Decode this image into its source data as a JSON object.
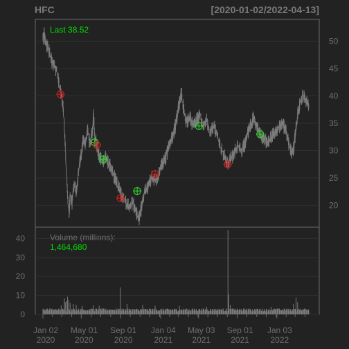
{
  "chart_data": [
    {
      "type": "line",
      "title": "HFC",
      "date_range": "[2020-01-02/2022-04-13]",
      "last_label": "Last 38.52",
      "x_range": [
        "2020-01-02",
        "2022-04-13"
      ],
      "ylim": [
        16,
        54
      ],
      "y_ticks": [
        20,
        25,
        30,
        35,
        40,
        45,
        50
      ],
      "y_tick_labels": [
        "20",
        "25",
        "30",
        "35",
        "40",
        "45",
        "50"
      ],
      "grid": true,
      "series": [
        {
          "name": "",
          "color": "#7a7a7a",
          "points": [
            [
              "2020-01-02",
              50.5
            ],
            [
              "2020-01-06",
              51.6
            ],
            [
              "2020-01-10",
              49.5
            ],
            [
              "2020-01-17",
              49.0
            ],
            [
              "2020-01-24",
              47.5
            ],
            [
              "2020-01-31",
              46.0
            ],
            [
              "2020-02-07",
              45.5
            ],
            [
              "2020-02-14",
              44.5
            ],
            [
              "2020-02-21",
              42.5
            ],
            [
              "2020-02-28",
              40.5
            ],
            [
              "2020-03-06",
              37.5
            ],
            [
              "2020-03-11",
              32.0
            ],
            [
              "2020-03-16",
              26.0
            ],
            [
              "2020-03-20",
              21.0
            ],
            [
              "2020-03-24",
              18.8
            ],
            [
              "2020-03-27",
              22.0
            ],
            [
              "2020-04-02",
              20.5
            ],
            [
              "2020-04-09",
              24.0
            ],
            [
              "2020-04-16",
              22.5
            ],
            [
              "2020-04-23",
              26.5
            ],
            [
              "2020-04-30",
              29.0
            ],
            [
              "2020-05-07",
              32.5
            ],
            [
              "2020-05-14",
              31.0
            ],
            [
              "2020-05-21",
              34.0
            ],
            [
              "2020-05-28",
              31.0
            ],
            [
              "2020-06-04",
              33.5
            ],
            [
              "2020-06-09",
              36.5
            ],
            [
              "2020-06-12",
              32.5
            ],
            [
              "2020-06-19",
              31.0
            ],
            [
              "2020-06-26",
              29.0
            ],
            [
              "2020-07-06",
              28.0
            ],
            [
              "2020-07-16",
              28.8
            ],
            [
              "2020-07-28",
              27.5
            ],
            [
              "2020-08-07",
              26.0
            ],
            [
              "2020-08-17",
              24.5
            ],
            [
              "2020-08-27",
              23.0
            ],
            [
              "2020-09-08",
              21.5
            ],
            [
              "2020-09-18",
              20.5
            ],
            [
              "2020-09-30",
              19.8
            ],
            [
              "2020-10-09",
              20.5
            ],
            [
              "2020-10-19",
              19.0
            ],
            [
              "2020-10-29",
              17.5
            ],
            [
              "2020-11-05",
              19.5
            ],
            [
              "2020-11-10",
              21.5
            ],
            [
              "2020-11-17",
              22.5
            ],
            [
              "2020-11-27",
              23.5
            ],
            [
              "2020-12-07",
              25.0
            ],
            [
              "2020-12-17",
              24.5
            ],
            [
              "2020-12-29",
              25.5
            ],
            [
              "2021-01-08",
              27.5
            ],
            [
              "2021-01-19",
              28.5
            ],
            [
              "2021-01-29",
              30.5
            ],
            [
              "2021-02-10",
              32.5
            ],
            [
              "2021-02-22",
              35.0
            ],
            [
              "2021-03-03",
              38.5
            ],
            [
              "2021-03-10",
              40.5
            ],
            [
              "2021-03-15",
              38.5
            ],
            [
              "2021-03-25",
              35.0
            ],
            [
              "2021-04-06",
              36.0
            ],
            [
              "2021-04-16",
              34.5
            ],
            [
              "2021-04-27",
              35.5
            ],
            [
              "2021-05-07",
              36.5
            ],
            [
              "2021-05-18",
              34.5
            ],
            [
              "2021-05-28",
              35.5
            ],
            [
              "2021-06-09",
              33.5
            ],
            [
              "2021-06-21",
              34.5
            ],
            [
              "2021-07-01",
              32.5
            ],
            [
              "2021-07-12",
              30.5
            ],
            [
              "2021-07-22",
              29.0
            ],
            [
              "2021-08-02",
              27.5
            ],
            [
              "2021-08-12",
              28.5
            ],
            [
              "2021-08-23",
              29.5
            ],
            [
              "2021-09-02",
              31.0
            ],
            [
              "2021-09-15",
              30.0
            ],
            [
              "2021-09-27",
              31.5
            ],
            [
              "2021-10-06",
              33.5
            ],
            [
              "2021-10-15",
              35.0
            ],
            [
              "2021-10-22",
              36.0
            ],
            [
              "2021-11-01",
              34.5
            ],
            [
              "2021-11-12",
              33.0
            ],
            [
              "2021-11-24",
              32.0
            ],
            [
              "2021-12-06",
              31.5
            ],
            [
              "2021-12-17",
              32.5
            ],
            [
              "2021-12-29",
              33.5
            ],
            [
              "2022-01-10",
              34.5
            ],
            [
              "2022-01-20",
              35.0
            ],
            [
              "2022-02-01",
              33.5
            ],
            [
              "2022-02-10",
              31.0
            ],
            [
              "2022-02-17",
              29.5
            ],
            [
              "2022-02-25",
              30.5
            ],
            [
              "2022-03-04",
              34.0
            ],
            [
              "2022-03-10",
              37.0
            ],
            [
              "2022-03-18",
              39.0
            ],
            [
              "2022-03-25",
              40.0
            ],
            [
              "2022-04-01",
              39.5
            ],
            [
              "2022-04-07",
              39.0
            ],
            [
              "2022-04-13",
              38.5
            ]
          ]
        }
      ],
      "markers": [
        {
          "date": "2020-02-26",
          "value": 40.3,
          "color": "#cc1f1f"
        },
        {
          "date": "2020-06-12",
          "value": 31.5,
          "color": "#33cc33"
        },
        {
          "date": "2020-06-19",
          "value": 31.0,
          "color": "#cc1f1f"
        },
        {
          "date": "2020-07-09",
          "value": 28.4,
          "color": "#33cc33"
        },
        {
          "date": "2020-09-01",
          "value": 21.3,
          "color": "#cc1f1f"
        },
        {
          "date": "2020-10-23",
          "value": 22.6,
          "color": "#33cc33"
        },
        {
          "date": "2020-12-18",
          "value": 25.7,
          "color": "#cc1f1f"
        },
        {
          "date": "2021-05-04",
          "value": 34.5,
          "color": "#33cc33"
        },
        {
          "date": "2021-08-02",
          "value": 27.5,
          "color": "#cc1f1f"
        },
        {
          "date": "2021-11-12",
          "value": 33.0,
          "color": "#33cc33"
        }
      ]
    },
    {
      "type": "bar",
      "title": "",
      "volume_label": "Volume (millions):",
      "volume_value": "1,464,680",
      "x_range": [
        "2020-01-02",
        "2022-04-13"
      ],
      "ylim": [
        0,
        46
      ],
      "y_ticks": [
        0,
        10,
        20,
        30,
        40
      ],
      "y_tick_labels": [
        "0",
        "10",
        "20",
        "30",
        "40"
      ],
      "grid": true,
      "baseline": 2.2,
      "spikes": [
        {
          "date": "2020-01-03",
          "value": 3.0
        },
        {
          "date": "2020-01-24",
          "value": 3.2
        },
        {
          "date": "2020-02-28",
          "value": 4.8
        },
        {
          "date": "2020-03-09",
          "value": 8.5
        },
        {
          "date": "2020-03-12",
          "value": 6.5
        },
        {
          "date": "2020-03-16",
          "value": 7.0
        },
        {
          "date": "2020-03-19",
          "value": 9.3
        },
        {
          "date": "2020-03-23",
          "value": 7.5
        },
        {
          "date": "2020-03-27",
          "value": 6.0
        },
        {
          "date": "2020-04-06",
          "value": 5.5
        },
        {
          "date": "2020-04-15",
          "value": 5.0
        },
        {
          "date": "2020-05-04",
          "value": 4.5
        },
        {
          "date": "2020-06-08",
          "value": 4.8
        },
        {
          "date": "2020-06-26",
          "value": 4.5
        },
        {
          "date": "2020-08-31",
          "value": 14.2
        },
        {
          "date": "2020-09-21",
          "value": 5.5
        },
        {
          "date": "2020-11-09",
          "value": 5.0
        },
        {
          "date": "2020-12-18",
          "value": 4.5
        },
        {
          "date": "2021-03-04",
          "value": 4.5
        },
        {
          "date": "2021-05-28",
          "value": 4.0
        },
        {
          "date": "2021-08-03",
          "value": 44.5
        },
        {
          "date": "2021-08-05",
          "value": 10.5
        },
        {
          "date": "2021-08-10",
          "value": 5.0
        },
        {
          "date": "2021-12-17",
          "value": 4.0
        },
        {
          "date": "2022-02-24",
          "value": 5.5
        },
        {
          "date": "2022-03-04",
          "value": 8.8
        },
        {
          "date": "2022-03-09",
          "value": 6.5
        }
      ],
      "x_ticks": [
        {
          "date": "2020-01-02",
          "line1": "Jan 02",
          "line2": "2020"
        },
        {
          "date": "2020-05-01",
          "line1": "May 01",
          "line2": "2020"
        },
        {
          "date": "2020-09-01",
          "line1": "Sep 01",
          "line2": "2020"
        },
        {
          "date": "2021-01-04",
          "line1": "Jan 04",
          "line2": "2021"
        },
        {
          "date": "2021-05-03",
          "line1": "May 03",
          "line2": "2021"
        },
        {
          "date": "2021-09-01",
          "line1": "Sep 01",
          "line2": "2021"
        },
        {
          "date": "2022-01-03",
          "line1": "Jan 03",
          "line2": "2022"
        }
      ]
    }
  ],
  "colors": {
    "background": "#222222",
    "panel_border": "#6b6b6b",
    "grid": "#303030",
    "axis_text": "#6e6e6e",
    "title": "#7a7a7a",
    "last_text": "#00dd00",
    "buy_marker": "#33cc33",
    "sell_marker": "#cc1f1f"
  }
}
